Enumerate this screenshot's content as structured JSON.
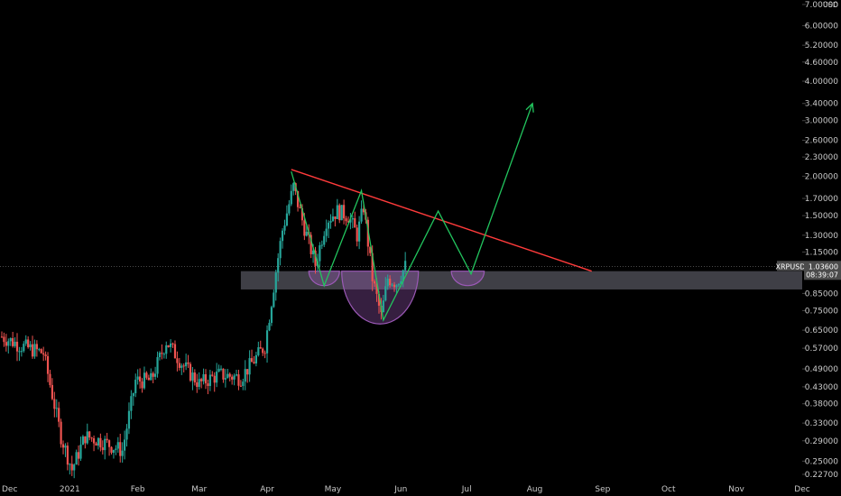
{
  "chart_data": {
    "type": "candlestick",
    "symbol": "XRPUSD",
    "currency": "USD",
    "price_scale": "log",
    "grid": false,
    "y_ticks": [
      {
        "v": 7.0,
        "label": "7.00000"
      },
      {
        "v": 6.0,
        "label": "6.00000"
      },
      {
        "v": 5.2,
        "label": "5.20000"
      },
      {
        "v": 4.6,
        "label": "4.60000"
      },
      {
        "v": 4.0,
        "label": "4.00000"
      },
      {
        "v": 3.4,
        "label": "3.40000"
      },
      {
        "v": 3.0,
        "label": "3.00000"
      },
      {
        "v": 2.6,
        "label": "2.60000"
      },
      {
        "v": 2.3,
        "label": "2.30000"
      },
      {
        "v": 2.0,
        "label": "2.00000"
      },
      {
        "v": 1.7,
        "label": "1.70000"
      },
      {
        "v": 1.5,
        "label": "1.50000"
      },
      {
        "v": 1.3,
        "label": "1.30000"
      },
      {
        "v": 1.15,
        "label": "1.15000"
      },
      {
        "v": 0.85,
        "label": "0.85000"
      },
      {
        "v": 0.75,
        "label": "0.75000"
      },
      {
        "v": 0.65,
        "label": "0.65000"
      },
      {
        "v": 0.57,
        "label": "0.57000"
      },
      {
        "v": 0.49,
        "label": "0.49000"
      },
      {
        "v": 0.43,
        "label": "0.43000"
      },
      {
        "v": 0.38,
        "label": "0.38000"
      },
      {
        "v": 0.33,
        "label": "0.33000"
      },
      {
        "v": 0.29,
        "label": "0.29000"
      },
      {
        "v": 0.25,
        "label": "0.25000"
      },
      {
        "v": 0.227,
        "label": "0.22700"
      }
    ],
    "x_ticks": [
      {
        "date": "2020-12-01",
        "label": "Dec"
      },
      {
        "date": "2021-01-01",
        "label": "2021"
      },
      {
        "date": "2021-02-01",
        "label": "Feb"
      },
      {
        "date": "2021-03-01",
        "label": "Mar"
      },
      {
        "date": "2021-04-01",
        "label": "Apr"
      },
      {
        "date": "2021-05-01",
        "label": "May"
      },
      {
        "date": "2021-06-01",
        "label": "Jun"
      },
      {
        "date": "2021-07-01",
        "label": "Jul"
      },
      {
        "date": "2021-08-01",
        "label": "Aug"
      },
      {
        "date": "2021-09-01",
        "label": "Sep"
      },
      {
        "date": "2021-10-01",
        "label": "Oct"
      },
      {
        "date": "2021-11-01",
        "label": "Nov"
      },
      {
        "date": "2021-12-01",
        "label": "Dec"
      }
    ],
    "last_price": {
      "label": "1.03600",
      "countdown": "08:39:07",
      "value": 1.036
    },
    "up_color": "#26a69a",
    "down_color": "#ef5350",
    "close_anchors": [
      {
        "date": "2020-12-01",
        "value": 0.62
      },
      {
        "date": "2020-12-10",
        "value": 0.58
      },
      {
        "date": "2020-12-20",
        "value": 0.55
      },
      {
        "date": "2020-12-28",
        "value": 0.3
      },
      {
        "date": "2021-01-02",
        "value": 0.235
      },
      {
        "date": "2021-01-08",
        "value": 0.3
      },
      {
        "date": "2021-01-15",
        "value": 0.29
      },
      {
        "date": "2021-01-25",
        "value": 0.27
      },
      {
        "date": "2021-01-31",
        "value": 0.45
      },
      {
        "date": "2021-02-07",
        "value": 0.45
      },
      {
        "date": "2021-02-14",
        "value": 0.6
      },
      {
        "date": "2021-02-22",
        "value": 0.5
      },
      {
        "date": "2021-03-01",
        "value": 0.44
      },
      {
        "date": "2021-03-10",
        "value": 0.47
      },
      {
        "date": "2021-03-20",
        "value": 0.46
      },
      {
        "date": "2021-03-31",
        "value": 0.58
      },
      {
        "date": "2021-04-05",
        "value": 1.0
      },
      {
        "date": "2021-04-08",
        "value": 1.35
      },
      {
        "date": "2021-04-13",
        "value": 1.85
      },
      {
        "date": "2021-04-17",
        "value": 1.45
      },
      {
        "date": "2021-04-23",
        "value": 1.05
      },
      {
        "date": "2021-04-28",
        "value": 1.45
      },
      {
        "date": "2021-05-03",
        "value": 1.55
      },
      {
        "date": "2021-05-08",
        "value": 1.5
      },
      {
        "date": "2021-05-12",
        "value": 1.3
      },
      {
        "date": "2021-05-15",
        "value": 1.6
      },
      {
        "date": "2021-05-19",
        "value": 0.95
      },
      {
        "date": "2021-05-23",
        "value": 0.72
      },
      {
        "date": "2021-05-26",
        "value": 0.95
      },
      {
        "date": "2021-05-30",
        "value": 0.92
      },
      {
        "date": "2021-06-03",
        "value": 1.036
      }
    ],
    "drawings": {
      "resistance_line": {
        "color": "#ff3b3b",
        "from": {
          "date": "2021-04-12",
          "value": 2.1
        },
        "to": {
          "date": "2021-08-27",
          "value": 1.0
        }
      },
      "support_zone": {
        "color": "#4a4a52",
        "from_date": "2021-03-20",
        "to_date": "2021-12-31",
        "top": 1.0,
        "bottom": 0.875
      },
      "projection_path": {
        "color": "#22c55e",
        "points": [
          {
            "date": "2021-04-12",
            "value": 2.07
          },
          {
            "date": "2021-04-27",
            "value": 0.9
          },
          {
            "date": "2021-05-14",
            "value": 1.8
          },
          {
            "date": "2021-05-24",
            "value": 0.7
          },
          {
            "date": "2021-06-18",
            "value": 1.55
          },
          {
            "date": "2021-07-03",
            "value": 0.98
          },
          {
            "date": "2021-07-31",
            "value": 3.4
          }
        ]
      },
      "cup_arcs": {
        "color": "#9b59b6",
        "arcs": [
          {
            "from": "2021-04-20",
            "to": "2021-05-04",
            "depth": 0.9
          },
          {
            "from": "2021-05-05",
            "to": "2021-06-09",
            "depth": 0.68
          },
          {
            "from": "2021-06-24",
            "to": "2021-07-09",
            "depth": 0.9
          }
        ]
      }
    }
  }
}
